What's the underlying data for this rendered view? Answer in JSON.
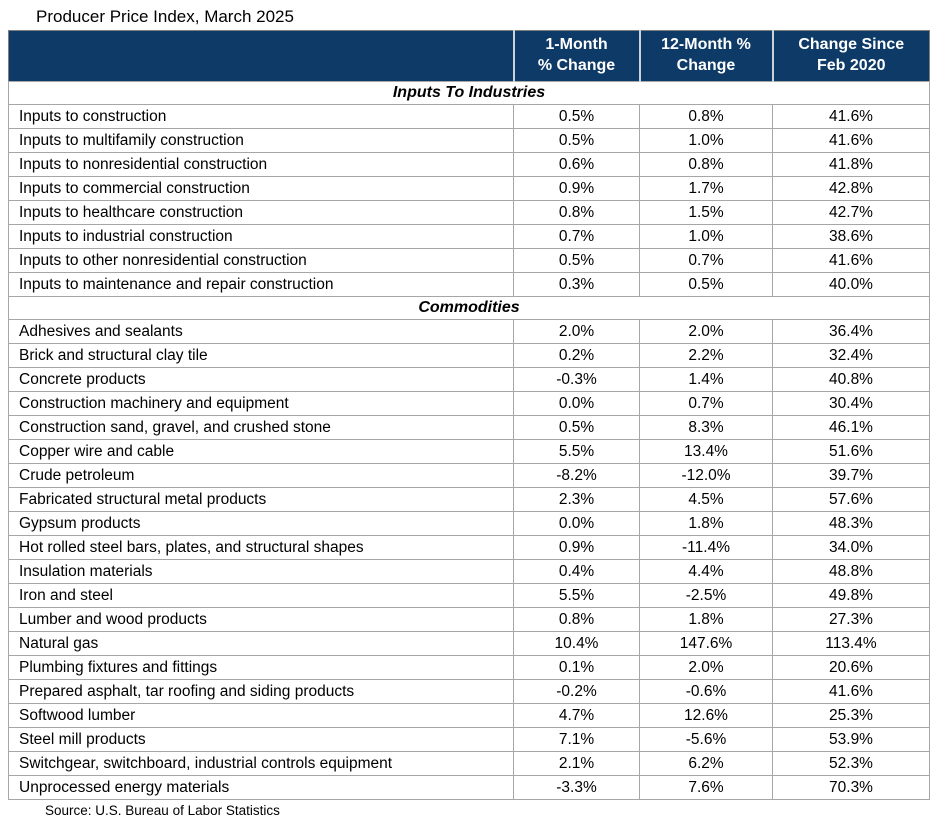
{
  "page": {
    "title": "Producer Price Index, March 2025",
    "source": "Source: U.S. Bureau of Labor Statistics"
  },
  "colors": {
    "header_bg": "#0e3a68",
    "header_text": "#ffffff",
    "grid_line": "#a6a6a6",
    "outer_border": "#7f7f7f"
  },
  "table": {
    "headers": [
      {
        "line1": "",
        "line2": ""
      },
      {
        "line1": "1-Month",
        "line2": "% Change"
      },
      {
        "line1": "12-Month %",
        "line2": "Change"
      },
      {
        "line1": "Change Since",
        "line2": "Feb 2020"
      }
    ],
    "sections": [
      {
        "name": "Inputs To Industries",
        "rows": [
          {
            "label": "Inputs to construction",
            "one_month": "0.5%",
            "twelve_month": "0.8%",
            "since_feb_2020": "41.6%"
          },
          {
            "label": "Inputs to multifamily construction",
            "one_month": "0.5%",
            "twelve_month": "1.0%",
            "since_feb_2020": "41.6%"
          },
          {
            "label": "Inputs to nonresidential construction",
            "one_month": "0.6%",
            "twelve_month": "0.8%",
            "since_feb_2020": "41.8%"
          },
          {
            "label": "Inputs to commercial construction",
            "one_month": "0.9%",
            "twelve_month": "1.7%",
            "since_feb_2020": "42.8%"
          },
          {
            "label": "Inputs to healthcare construction",
            "one_month": "0.8%",
            "twelve_month": "1.5%",
            "since_feb_2020": "42.7%"
          },
          {
            "label": "Inputs to industrial construction",
            "one_month": "0.7%",
            "twelve_month": "1.0%",
            "since_feb_2020": "38.6%"
          },
          {
            "label": "Inputs to other nonresidential construction",
            "one_month": "0.5%",
            "twelve_month": "0.7%",
            "since_feb_2020": "41.6%"
          },
          {
            "label": "Inputs to maintenance and repair construction",
            "one_month": "0.3%",
            "twelve_month": "0.5%",
            "since_feb_2020": "40.0%"
          }
        ]
      },
      {
        "name": "Commodities",
        "rows": [
          {
            "label": "Adhesives and sealants",
            "one_month": "2.0%",
            "twelve_month": "2.0%",
            "since_feb_2020": "36.4%"
          },
          {
            "label": "Brick and structural clay tile",
            "one_month": "0.2%",
            "twelve_month": "2.2%",
            "since_feb_2020": "32.4%"
          },
          {
            "label": "Concrete products",
            "one_month": "-0.3%",
            "twelve_month": "1.4%",
            "since_feb_2020": "40.8%"
          },
          {
            "label": "Construction machinery and equipment",
            "one_month": "0.0%",
            "twelve_month": "0.7%",
            "since_feb_2020": "30.4%"
          },
          {
            "label": "Construction sand, gravel, and crushed stone",
            "one_month": "0.5%",
            "twelve_month": "8.3%",
            "since_feb_2020": "46.1%"
          },
          {
            "label": "Copper wire and cable",
            "one_month": "5.5%",
            "twelve_month": "13.4%",
            "since_feb_2020": "51.6%"
          },
          {
            "label": "Crude petroleum",
            "one_month": "-8.2%",
            "twelve_month": "-12.0%",
            "since_feb_2020": "39.7%"
          },
          {
            "label": "Fabricated structural metal products",
            "one_month": "2.3%",
            "twelve_month": "4.5%",
            "since_feb_2020": "57.6%"
          },
          {
            "label": "Gypsum products",
            "one_month": "0.0%",
            "twelve_month": "1.8%",
            "since_feb_2020": "48.3%"
          },
          {
            "label": "Hot rolled steel bars, plates, and structural shapes",
            "one_month": "0.9%",
            "twelve_month": "-11.4%",
            "since_feb_2020": "34.0%"
          },
          {
            "label": "Insulation materials",
            "one_month": "0.4%",
            "twelve_month": "4.4%",
            "since_feb_2020": "48.8%"
          },
          {
            "label": "Iron and steel",
            "one_month": "5.5%",
            "twelve_month": "-2.5%",
            "since_feb_2020": "49.8%"
          },
          {
            "label": "Lumber and wood products",
            "one_month": "0.8%",
            "twelve_month": "1.8%",
            "since_feb_2020": "27.3%"
          },
          {
            "label": "Natural gas",
            "one_month": "10.4%",
            "twelve_month": "147.6%",
            "since_feb_2020": "113.4%"
          },
          {
            "label": "Plumbing fixtures and fittings",
            "one_month": "0.1%",
            "twelve_month": "2.0%",
            "since_feb_2020": "20.6%"
          },
          {
            "label": "Prepared asphalt, tar roofing and siding products",
            "one_month": "-0.2%",
            "twelve_month": "-0.6%",
            "since_feb_2020": "41.6%"
          },
          {
            "label": "Softwood lumber",
            "one_month": "4.7%",
            "twelve_month": "12.6%",
            "since_feb_2020": "25.3%"
          },
          {
            "label": "Steel mill products",
            "one_month": "7.1%",
            "twelve_month": "-5.6%",
            "since_feb_2020": "53.9%"
          },
          {
            "label": "Switchgear, switchboard, industrial controls equipment",
            "one_month": "2.1%",
            "twelve_month": "6.2%",
            "since_feb_2020": "52.3%"
          },
          {
            "label": "Unprocessed energy materials",
            "one_month": "-3.3%",
            "twelve_month": "7.6%",
            "since_feb_2020": "70.3%"
          }
        ]
      }
    ]
  }
}
